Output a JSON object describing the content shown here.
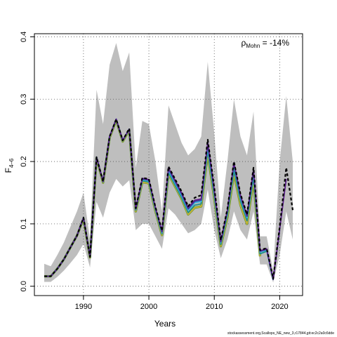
{
  "chart_data": {
    "type": "line",
    "xlabel": "Years",
    "ylabel": "F",
    "ylabel_sub": "4–6",
    "annotation": {
      "rho": "ρ",
      "sub": "Mohn",
      "value": " = -14%"
    },
    "xlim": [
      1982.5,
      2023.5
    ],
    "ylim": [
      -0.015,
      0.405
    ],
    "x_ticks": [
      1990,
      2000,
      2010,
      2020
    ],
    "y_ticks": [
      0.0,
      0.1,
      0.2,
      0.3,
      0.4
    ],
    "y_tick_labels": [
      "0.0",
      "0.1",
      "0.2",
      "0.3",
      "0.4"
    ],
    "grid": "dotted",
    "confidence_band": {
      "x": [
        1984,
        1985,
        1986,
        1987,
        1988,
        1989,
        1990,
        1991,
        1992,
        1993,
        1994,
        1995,
        1996,
        1997,
        1998,
        1999,
        2000,
        2001,
        2002,
        2003,
        2004,
        2005,
        2006,
        2007,
        2008,
        2009,
        2010,
        2011,
        2012,
        2013,
        2014,
        2015,
        2016,
        2017,
        2018,
        2019,
        2020,
        2021,
        2022
      ],
      "upper": [
        0.036,
        0.032,
        0.05,
        0.07,
        0.095,
        0.12,
        0.15,
        0.075,
        0.315,
        0.26,
        0.355,
        0.39,
        0.345,
        0.375,
        0.19,
        0.265,
        0.26,
        0.2,
        0.12,
        0.29,
        0.26,
        0.23,
        0.21,
        0.22,
        0.24,
        0.36,
        0.245,
        0.11,
        0.2,
        0.3,
        0.24,
        0.21,
        0.28,
        0.08,
        0.08,
        0.025,
        0.2,
        0.305,
        0.2
      ],
      "lower": [
        0.007,
        0.007,
        0.015,
        0.025,
        0.037,
        0.05,
        0.068,
        0.03,
        0.135,
        0.11,
        0.15,
        0.172,
        0.16,
        0.17,
        0.09,
        0.1,
        0.1,
        0.08,
        0.06,
        0.125,
        0.115,
        0.1,
        0.085,
        0.09,
        0.1,
        0.155,
        0.09,
        0.045,
        0.075,
        0.12,
        0.09,
        0.075,
        0.12,
        0.035,
        0.035,
        0.006,
        0.05,
        0.12,
        0.075
      ]
    },
    "series": [
      {
        "color": "#5b8f2e",
        "width": 3.2,
        "x": [
          1984,
          1985,
          1986,
          1987,
          1988,
          1989,
          1990,
          1991,
          1992,
          1993,
          1994,
          1995,
          1996,
          1997,
          1998,
          1999,
          2000,
          2001,
          2002,
          2003,
          2004,
          2005,
          2006,
          2007,
          2008,
          2009,
          2010,
          2011,
          2012,
          2013,
          2014,
          2015,
          2016,
          2017
        ],
        "values": [
          0.016,
          0.016,
          0.028,
          0.043,
          0.062,
          0.081,
          0.108,
          0.046,
          0.205,
          0.166,
          0.238,
          0.266,
          0.232,
          0.25,
          0.12,
          0.167,
          0.165,
          0.12,
          0.082,
          0.18,
          0.16,
          0.14,
          0.115,
          0.126,
          0.128,
          0.212,
          0.14,
          0.064,
          0.11,
          0.18,
          0.13,
          0.1,
          0.168,
          0.048
        ]
      },
      {
        "color": "#c8b432",
        "width": 2.0,
        "x": [
          1984,
          1985,
          1986,
          1987,
          1988,
          1989,
          1990,
          1991,
          1992,
          1993,
          1994,
          1995,
          1996,
          1997,
          1998,
          1999,
          2000,
          2001,
          2002,
          2003,
          2004,
          2005,
          2006,
          2007,
          2008,
          2009,
          2010,
          2011,
          2012,
          2013,
          2014,
          2015,
          2016,
          2017
        ],
        "values": [
          0.016,
          0.016,
          0.028,
          0.043,
          0.062,
          0.081,
          0.108,
          0.046,
          0.205,
          0.166,
          0.238,
          0.266,
          0.232,
          0.25,
          0.12,
          0.167,
          0.165,
          0.12,
          0.082,
          0.18,
          0.16,
          0.14,
          0.115,
          0.126,
          0.128,
          0.212,
          0.14,
          0.064,
          0.11,
          0.18,
          0.13,
          0.1,
          0.168,
          0.048
        ]
      },
      {
        "color": "#1f8f8a",
        "width": 1.8,
        "x": [
          1984,
          1985,
          1986,
          1987,
          1988,
          1989,
          1990,
          1991,
          1992,
          1993,
          1994,
          1995,
          1996,
          1997,
          1998,
          1999,
          2000,
          2001,
          2002,
          2003,
          2004,
          2005,
          2006,
          2007,
          2008,
          2009,
          2010,
          2011,
          2012,
          2013,
          2014,
          2015,
          2016,
          2017,
          2018
        ],
        "values": [
          0.016,
          0.016,
          0.028,
          0.043,
          0.062,
          0.081,
          0.109,
          0.047,
          0.206,
          0.167,
          0.239,
          0.267,
          0.233,
          0.251,
          0.122,
          0.169,
          0.167,
          0.122,
          0.084,
          0.182,
          0.162,
          0.142,
          0.118,
          0.13,
          0.132,
          0.217,
          0.144,
          0.067,
          0.114,
          0.185,
          0.136,
          0.105,
          0.174,
          0.052,
          0.056
        ]
      },
      {
        "color": "#3ab6e0",
        "width": 2.0,
        "x": [
          1984,
          1985,
          1986,
          1987,
          1988,
          1989,
          1990,
          1991,
          1992,
          1993,
          1994,
          1995,
          1996,
          1997,
          1998,
          1999,
          2000,
          2001,
          2002,
          2003,
          2004,
          2005,
          2006,
          2007,
          2008,
          2009,
          2010,
          2011,
          2012,
          2013,
          2014,
          2015,
          2016,
          2017,
          2018,
          2019
        ],
        "values": [
          0.016,
          0.016,
          0.028,
          0.043,
          0.062,
          0.081,
          0.11,
          0.047,
          0.207,
          0.168,
          0.24,
          0.268,
          0.234,
          0.252,
          0.123,
          0.171,
          0.169,
          0.124,
          0.086,
          0.186,
          0.166,
          0.146,
          0.122,
          0.134,
          0.136,
          0.225,
          0.15,
          0.07,
          0.12,
          0.194,
          0.142,
          0.11,
          0.182,
          0.055,
          0.058,
          0.01
        ]
      },
      {
        "color": "#3a3a9e",
        "width": 1.8,
        "x": [
          1984,
          1985,
          1986,
          1987,
          1988,
          1989,
          1990,
          1991,
          1992,
          1993,
          1994,
          1995,
          1996,
          1997,
          1998,
          1999,
          2000,
          2001,
          2002,
          2003,
          2004,
          2005,
          2006,
          2007,
          2008,
          2009,
          2010,
          2011,
          2012,
          2013,
          2014,
          2015,
          2016,
          2017,
          2018,
          2019,
          2020
        ],
        "values": [
          0.016,
          0.016,
          0.028,
          0.043,
          0.062,
          0.081,
          0.11,
          0.047,
          0.207,
          0.168,
          0.24,
          0.268,
          0.234,
          0.252,
          0.124,
          0.172,
          0.17,
          0.125,
          0.087,
          0.188,
          0.168,
          0.148,
          0.124,
          0.136,
          0.138,
          0.228,
          0.152,
          0.071,
          0.121,
          0.196,
          0.144,
          0.112,
          0.185,
          0.056,
          0.059,
          0.011,
          0.09
        ]
      },
      {
        "color": "#5b1f8a",
        "width": 1.8,
        "x": [
          1984,
          1985,
          1986,
          1987,
          1988,
          1989,
          1990,
          1991,
          1992,
          1993,
          1994,
          1995,
          1996,
          1997,
          1998,
          1999,
          2000,
          2001,
          2002,
          2003,
          2004,
          2005,
          2006,
          2007,
          2008,
          2009,
          2010,
          2011,
          2012,
          2013,
          2014,
          2015,
          2016,
          2017,
          2018,
          2019,
          2020,
          2021
        ],
        "values": [
          0.016,
          0.016,
          0.028,
          0.043,
          0.062,
          0.081,
          0.11,
          0.047,
          0.207,
          0.168,
          0.24,
          0.268,
          0.234,
          0.252,
          0.124,
          0.173,
          0.171,
          0.126,
          0.088,
          0.19,
          0.17,
          0.15,
          0.126,
          0.138,
          0.14,
          0.231,
          0.154,
          0.072,
          0.122,
          0.198,
          0.146,
          0.113,
          0.187,
          0.057,
          0.06,
          0.011,
          0.092,
          0.172
        ]
      },
      {
        "color": "#000000",
        "width": 2.2,
        "dash": "4,3",
        "x": [
          1984,
          1985,
          1986,
          1987,
          1988,
          1989,
          1990,
          1991,
          1992,
          1993,
          1994,
          1995,
          1996,
          1997,
          1998,
          1999,
          2000,
          2001,
          2002,
          2003,
          2004,
          2005,
          2006,
          2007,
          2008,
          2009,
          2010,
          2011,
          2012,
          2013,
          2014,
          2015,
          2016,
          2017,
          2018,
          2019,
          2020,
          2021,
          2022
        ],
        "values": [
          0.016,
          0.016,
          0.028,
          0.043,
          0.062,
          0.081,
          0.11,
          0.047,
          0.207,
          0.168,
          0.24,
          0.268,
          0.234,
          0.253,
          0.125,
          0.174,
          0.172,
          0.127,
          0.089,
          0.192,
          0.172,
          0.152,
          0.128,
          0.142,
          0.146,
          0.235,
          0.158,
          0.074,
          0.124,
          0.2,
          0.148,
          0.115,
          0.19,
          0.058,
          0.061,
          0.012,
          0.095,
          0.19,
          0.122
        ]
      }
    ]
  },
  "footer": "stockassessment.org,Scallops_NE_new_3,r17844,git:ec2c2a0c6dde"
}
